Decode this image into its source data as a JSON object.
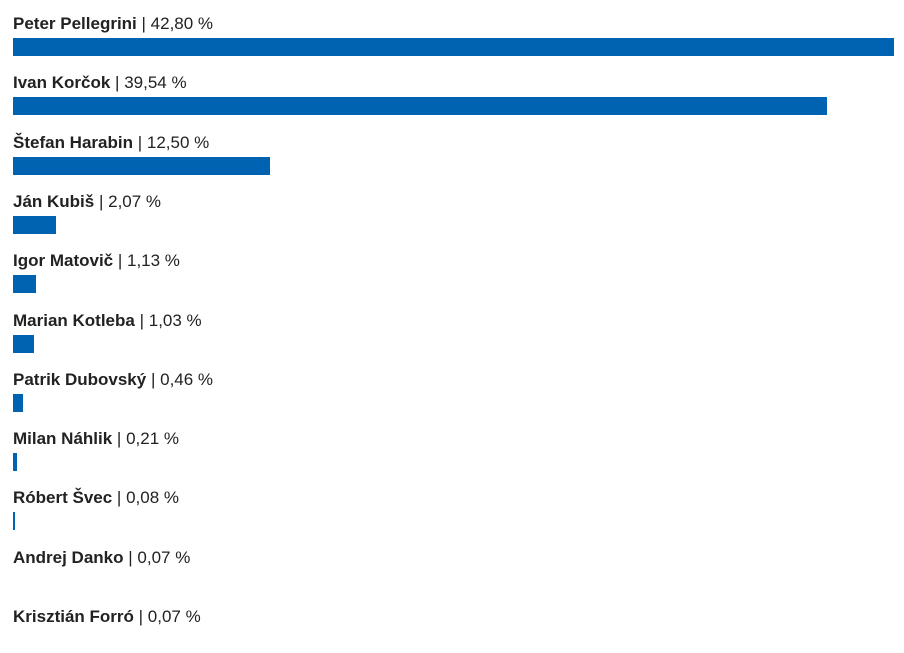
{
  "chart_data": {
    "type": "bar",
    "orientation": "horizontal",
    "title": "",
    "xlabel": "",
    "ylabel": "",
    "unit": "%",
    "separator": "|",
    "bar_color": "#0063b1",
    "grid": false,
    "xlim": [
      0,
      42.8
    ],
    "categories": [
      "Peter Pellegrini",
      "Ivan Korčok",
      "Štefan Harabin",
      "Ján Kubiš",
      "Igor Matovič",
      "Marian Kotleba",
      "Patrik Dubovský",
      "Milan Náhlik",
      "Róbert Švec",
      "Andrej Danko",
      "Krisztián Forró"
    ],
    "values": [
      42.8,
      39.54,
      12.5,
      2.07,
      1.13,
      1.03,
      0.46,
      0.21,
      0.08,
      0.07,
      0.07
    ],
    "value_labels": [
      "42,80 %",
      "39,54 %",
      "12,50 %",
      "2,07 %",
      "1,13 %",
      "1,03 %",
      "0,46 %",
      "0,21 %",
      "0,08 %",
      "0,07 %",
      "0,07 %"
    ]
  }
}
